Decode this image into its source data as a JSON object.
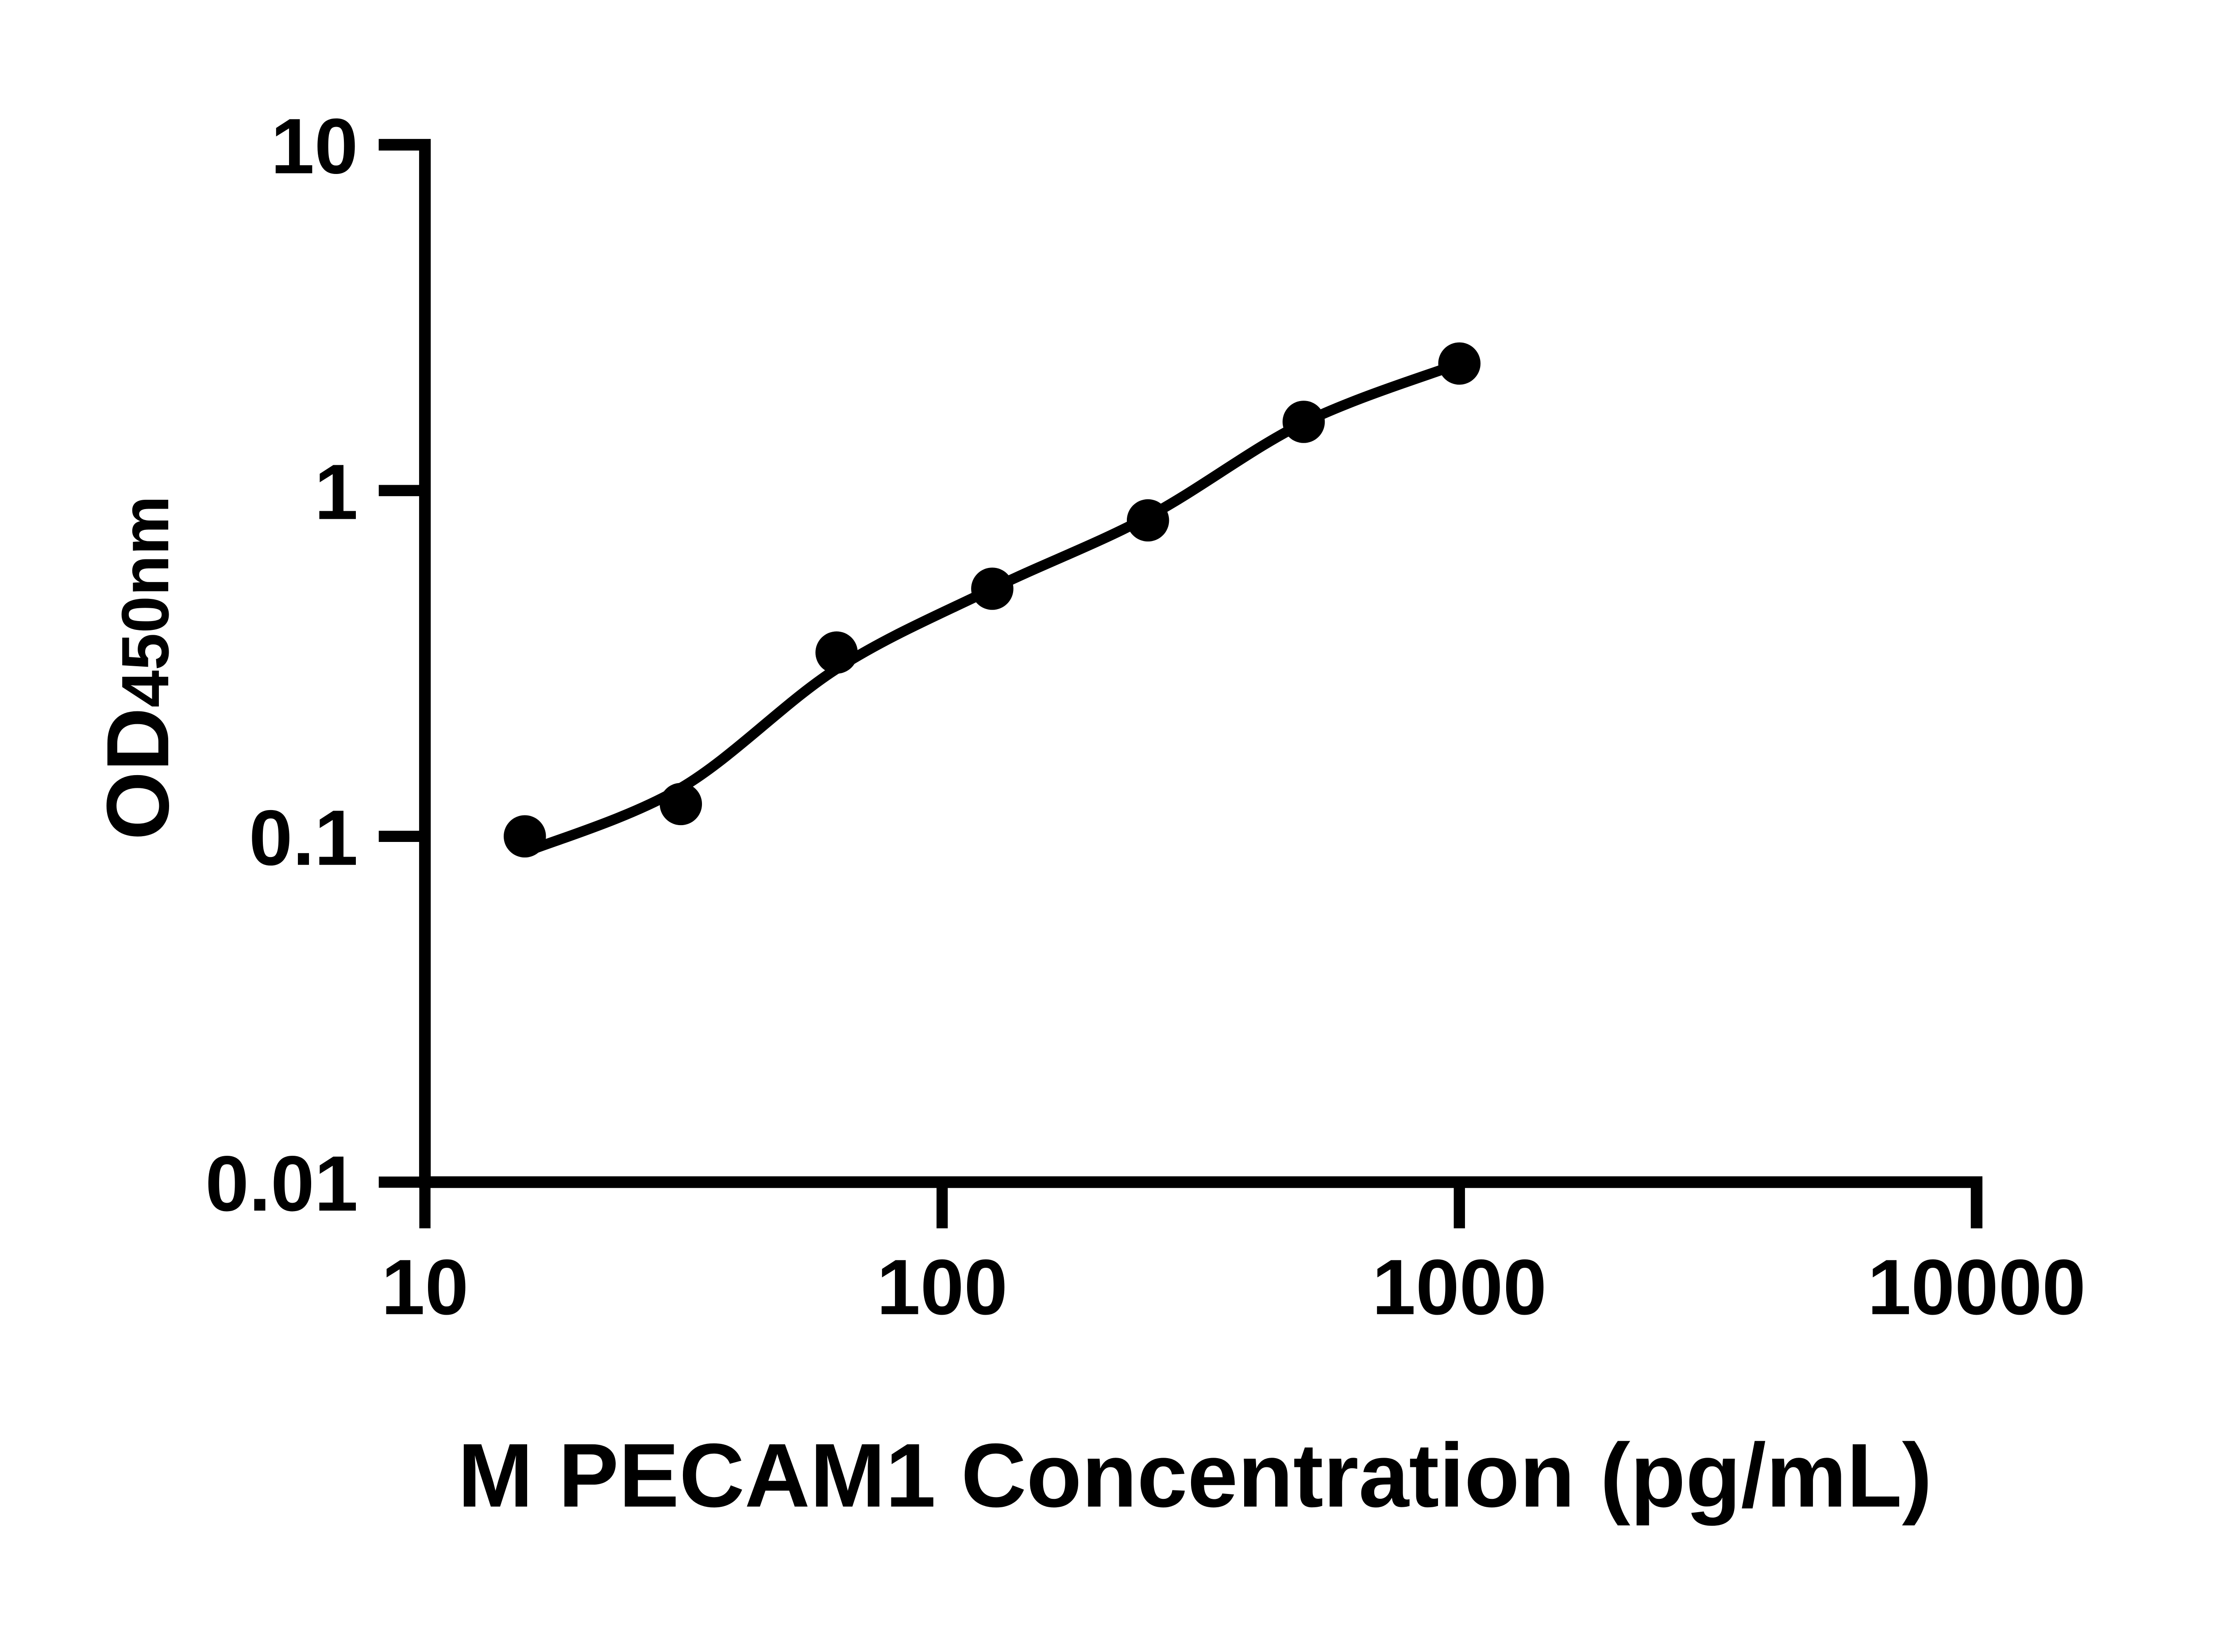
{
  "page": {
    "background": "#ffffff",
    "foreground": "#000000"
  },
  "chart_data": {
    "type": "scatter",
    "title": "",
    "xlabel": "M PECAM1 Concentration (pg/mL)",
    "ylabel_main": "OD",
    "ylabel_sub": "450nm",
    "x_scale": "log",
    "y_scale": "log",
    "xlim": [
      10,
      10000
    ],
    "ylim": [
      0.01,
      10
    ],
    "x_tick_values": [
      10,
      100,
      1000,
      10000
    ],
    "x_tick_labels": [
      "10",
      "100",
      "1000",
      "10000"
    ],
    "y_tick_values": [
      10,
      1,
      0.1,
      0.01
    ],
    "y_tick_labels": [
      "10",
      "1",
      "0.1",
      "0.01"
    ],
    "grid": false,
    "legend": null,
    "marker_color": "#000000",
    "line_color": "#000000",
    "series": [
      {
        "name": "standard-points",
        "type": "scatter",
        "marker": "circle",
        "x": [
          15.6,
          31.25,
          62.5,
          125,
          250,
          500,
          1000
        ],
        "y": [
          0.1,
          0.124,
          0.34,
          0.52,
          0.82,
          1.58,
          2.33
        ]
      },
      {
        "name": "fit-curve",
        "type": "line",
        "x": [
          15.6,
          31.25,
          62.5,
          125,
          250,
          500,
          1000
        ],
        "y": [
          0.09,
          0.138,
          0.305,
          0.52,
          0.84,
          1.57,
          2.33
        ]
      }
    ]
  }
}
